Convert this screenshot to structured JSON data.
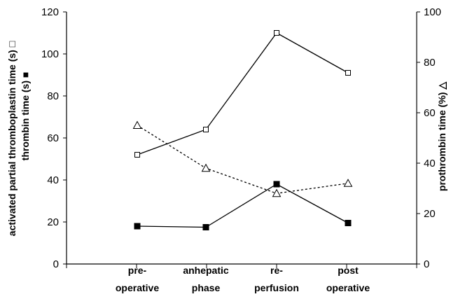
{
  "chart_data": {
    "type": "line",
    "categories": [
      [
        "pre-",
        "operative"
      ],
      [
        "anhepatic",
        "phase"
      ],
      [
        "re-",
        "perfusion"
      ],
      [
        "post",
        "operative"
      ]
    ],
    "y_left": {
      "label_line1": "activated partial thromboplastin time (s) □",
      "label_line2": "thrombin time (s) ■",
      "ylim": [
        0,
        120
      ],
      "ticks": [
        "0",
        "20",
        "40",
        "60",
        "80",
        "100",
        "120"
      ]
    },
    "y_right": {
      "label": "prothrombin time (%) △",
      "ylim": [
        0,
        100
      ],
      "ticks": [
        "0",
        "20",
        "40",
        "60",
        "80",
        "100"
      ]
    },
    "series": [
      {
        "axis": "left",
        "marker": "open-square",
        "line": "solid",
        "values": [
          52,
          64,
          110,
          91
        ]
      },
      {
        "axis": "left",
        "marker": "filled-square",
        "line": "solid",
        "values": [
          18,
          17.5,
          38,
          19.5
        ]
      },
      {
        "axis": "right",
        "marker": "open-triangle",
        "line": "dotted",
        "values": [
          55,
          38,
          28,
          32
        ]
      }
    ],
    "grid": false,
    "legend": "none"
  }
}
